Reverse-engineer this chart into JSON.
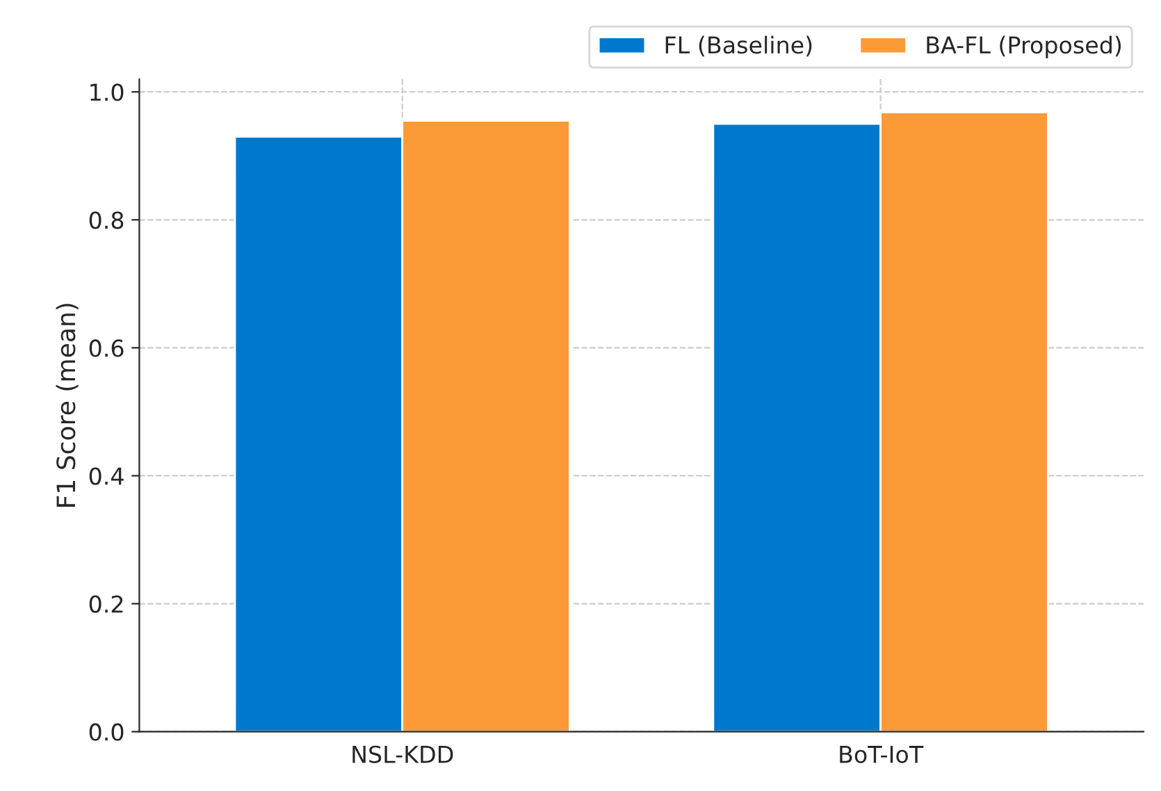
{
  "chart_data": {
    "type": "bar",
    "ylabel": "F1 Score (mean)",
    "categories": [
      "NSL-KDD",
      "BoT-IoT"
    ],
    "series": [
      {
        "name": "FL (Baseline)",
        "color": "#0078cd",
        "values": [
          0.93,
          0.95
        ]
      },
      {
        "name": "BA-FL (Proposed)",
        "color": "#fd9a38",
        "values": [
          0.955,
          0.968
        ]
      }
    ],
    "ylim": [
      0,
      1.02
    ],
    "yticks": [
      {
        "value": 0,
        "label": "0.0"
      },
      0.2,
      0.4,
      0.6,
      0.8,
      {
        "value": 1,
        "label": "1.0"
      }
    ],
    "grid": true,
    "legend": "top right"
  }
}
